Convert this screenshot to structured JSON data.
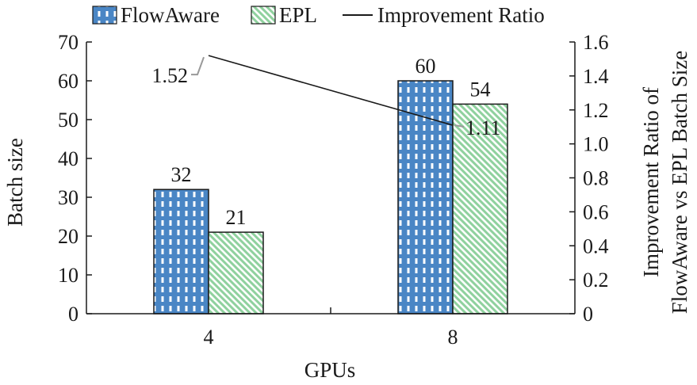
{
  "chart_data": {
    "type": "bar",
    "categories": [
      "4",
      "8"
    ],
    "series": [
      {
        "name": "FlowAware",
        "values": [
          32,
          60
        ],
        "color": "#4a86c5",
        "pattern": "dots"
      },
      {
        "name": "EPL",
        "values": [
          21,
          54
        ],
        "color": "#8fd19e",
        "pattern": "diagonal"
      }
    ],
    "line": {
      "name": "Improvement Ratio",
      "values": [
        1.52,
        1.11
      ],
      "labels": [
        "1.52",
        "1.11"
      ],
      "color": "#1a1a1a"
    },
    "xlabel": "GPUs",
    "ylabel": "Batch size",
    "y2label_lines": [
      "Improvement Ratio of",
      "FlowAware vs EPL Batch Size"
    ],
    "ylim": [
      0,
      70
    ],
    "yticks": [
      0,
      10,
      20,
      30,
      40,
      50,
      60,
      70
    ],
    "y2lim": [
      0,
      1.6
    ],
    "y2ticks": [
      "0",
      "0.2",
      "0.4",
      "0.6",
      "0.8",
      "1.0",
      "1.2",
      "1.4",
      "1.6"
    ],
    "legend_position": "top",
    "grid": false
  }
}
